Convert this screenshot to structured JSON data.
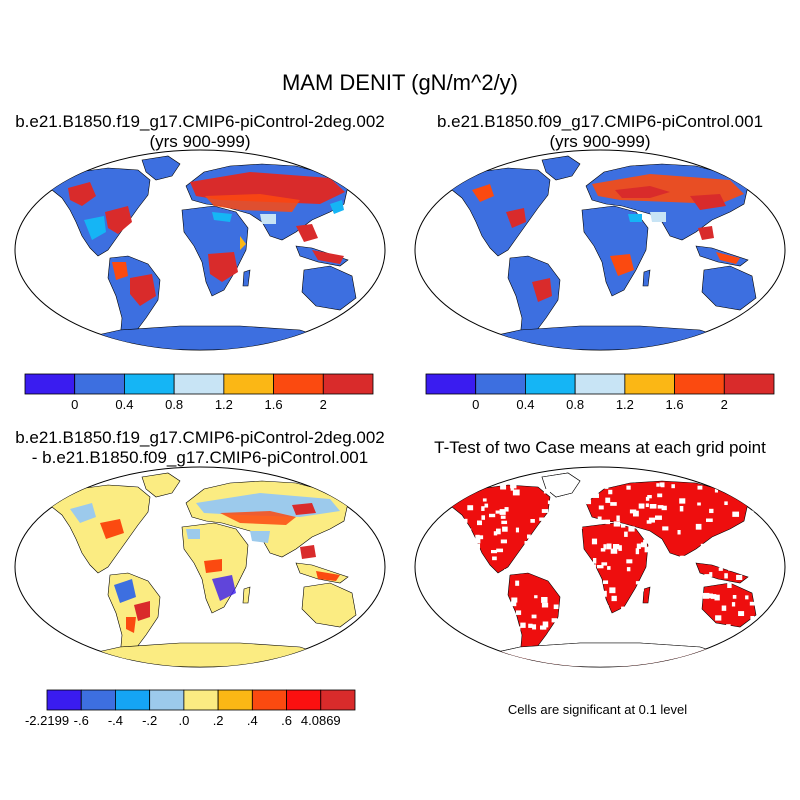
{
  "main_title": "MAM DENIT (gN/m^2/y)",
  "panels": [
    {
      "title_line1": "b.e21.B1850.f19_g17.CMIP6-piControl-2deg.002",
      "title_line2": "(yrs 900-999)"
    },
    {
      "title_line1": "b.e21.B1850.f09_g17.CMIP6-piControl.001",
      "title_line2": "(yrs 900-999)"
    },
    {
      "title_line1": "b.e21.B1850.f19_g17.CMIP6-piControl-2deg.002",
      "title_line2": "- b.e21.B1850.f09_g17.CMIP6-piControl.001"
    },
    {
      "title_line1": "T-Test of two Case means at each grid point",
      "title_line2": ""
    }
  ],
  "colorbar_top": {
    "colors": [
      "#3a1cf0",
      "#3d6fe0",
      "#15b5f5",
      "#c8e4f5",
      "#fbb715",
      "#fb4a10",
      "#d92b2b"
    ],
    "labels": [
      "0",
      "0.4",
      "0.8",
      "1.2",
      "1.6",
      "2"
    ]
  },
  "colorbar_diff": {
    "colors": [
      "#3a1cf0",
      "#3d6fe0",
      "#15a5f5",
      "#9ccaec",
      "#fbec82",
      "#fbb715",
      "#fb4a10",
      "#fb1010",
      "#d92b2b"
    ],
    "labels": [
      "-2.2199",
      "-.6",
      "-.4",
      "-.2",
      ".0",
      ".2",
      ".4",
      ".6",
      "4.0869"
    ]
  },
  "significance_note": "Cells are significant at 0.1 level",
  "map_colors": {
    "base_field": "#3d6fe0",
    "diff_field": "#fbec82",
    "ttest_field": "#ee0e0e",
    "high": "#d92b2b",
    "mid": "#15b5f5",
    "light": "#c8e4f5",
    "orange": "#fbb715"
  }
}
